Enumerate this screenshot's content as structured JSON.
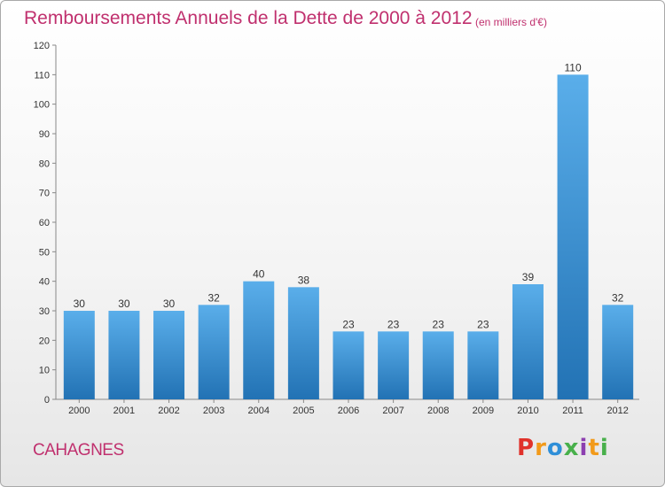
{
  "header": {
    "title": "Remboursements Annuels de la Dette de 2000 à 2012",
    "unit": "(en milliers d'€)"
  },
  "commune": "CAHAGNES",
  "logo": {
    "text": "Proxiti"
  },
  "colors": {
    "bar_light": "#5aaeea",
    "bar_dark": "#2272b4",
    "text_accent": "#c0306e"
  },
  "chart_data": {
    "type": "bar",
    "title": "Remboursements Annuels de la Dette de 2000 à 2012",
    "xlabel": "",
    "ylabel": "(en milliers d'€)",
    "categories": [
      "2000",
      "2001",
      "2002",
      "2003",
      "2004",
      "2005",
      "2006",
      "2007",
      "2008",
      "2009",
      "2010",
      "2011",
      "2012"
    ],
    "values": [
      30,
      30,
      30,
      32,
      40,
      38,
      23,
      23,
      23,
      23,
      39,
      110,
      32
    ],
    "ylim": [
      0,
      120
    ],
    "yticks": [
      0,
      10,
      20,
      30,
      40,
      50,
      60,
      70,
      80,
      90,
      100,
      110,
      120
    ],
    "grid": false,
    "data_labels": true
  }
}
